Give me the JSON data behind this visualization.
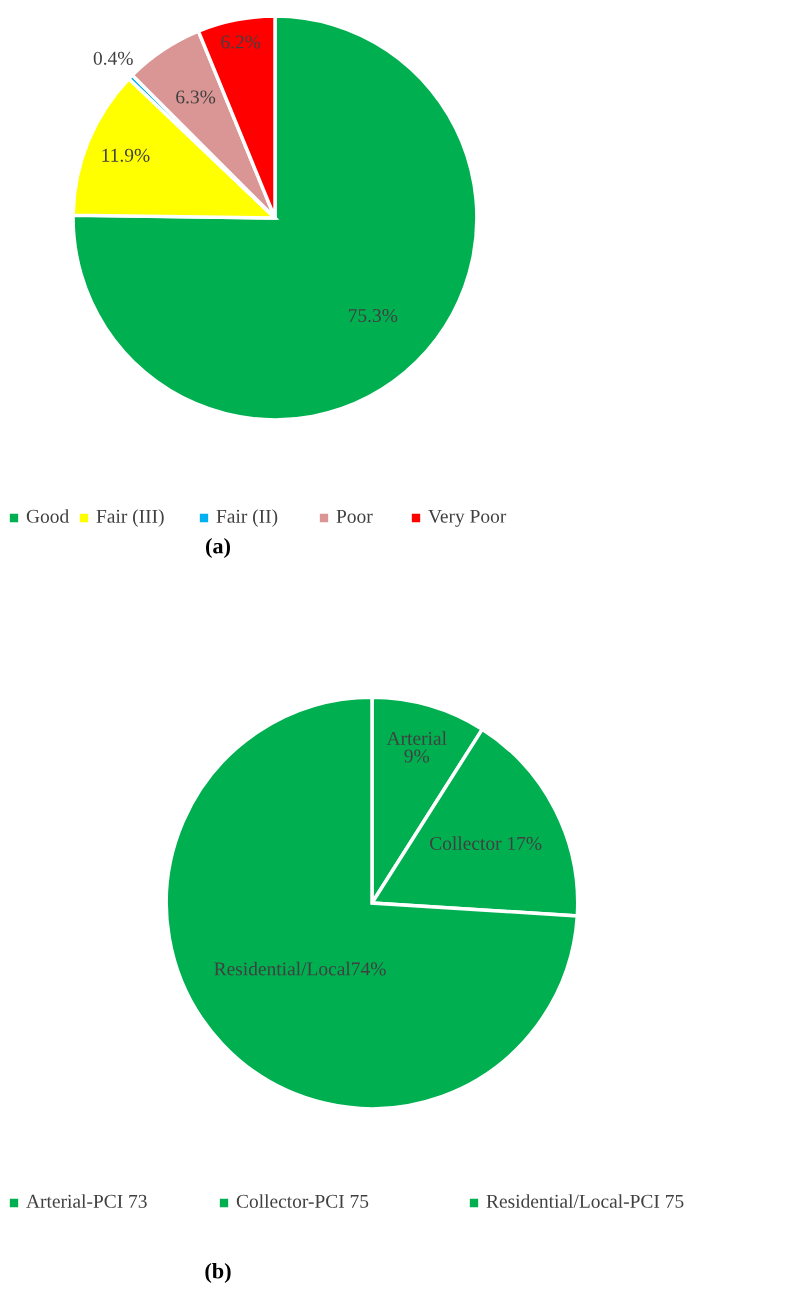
{
  "chart_data": [
    {
      "type": "pie",
      "categories": [
        "Good",
        "Fair (III)",
        "Fair (II)",
        "Poor",
        "Very Poor"
      ],
      "values": [
        75.3,
        11.9,
        0.4,
        6.3,
        6.2
      ],
      "colors": [
        "#00b050",
        "#ffff00",
        "#00b0f0",
        "#da9694",
        "#ff0000"
      ],
      "value_labels": [
        "75.3%",
        "11.9%",
        "0.4%",
        "6.3%",
        "6.2%"
      ],
      "legend": "bottom",
      "annotations": [
        "(a)"
      ]
    },
    {
      "type": "pie",
      "categories": [
        "Arterial-PCI 73",
        "Collector-PCI 75",
        "Residential/Local-PCI 75"
      ],
      "values": [
        9,
        17,
        74
      ],
      "colors": [
        "#00b050",
        "#00b050",
        "#00b050"
      ],
      "value_labels": [
        "Arterial\n9%",
        "Collector 17%",
        "Residential/Local74%"
      ],
      "legend": "bottom",
      "annotations": [
        "(b)"
      ]
    }
  ]
}
